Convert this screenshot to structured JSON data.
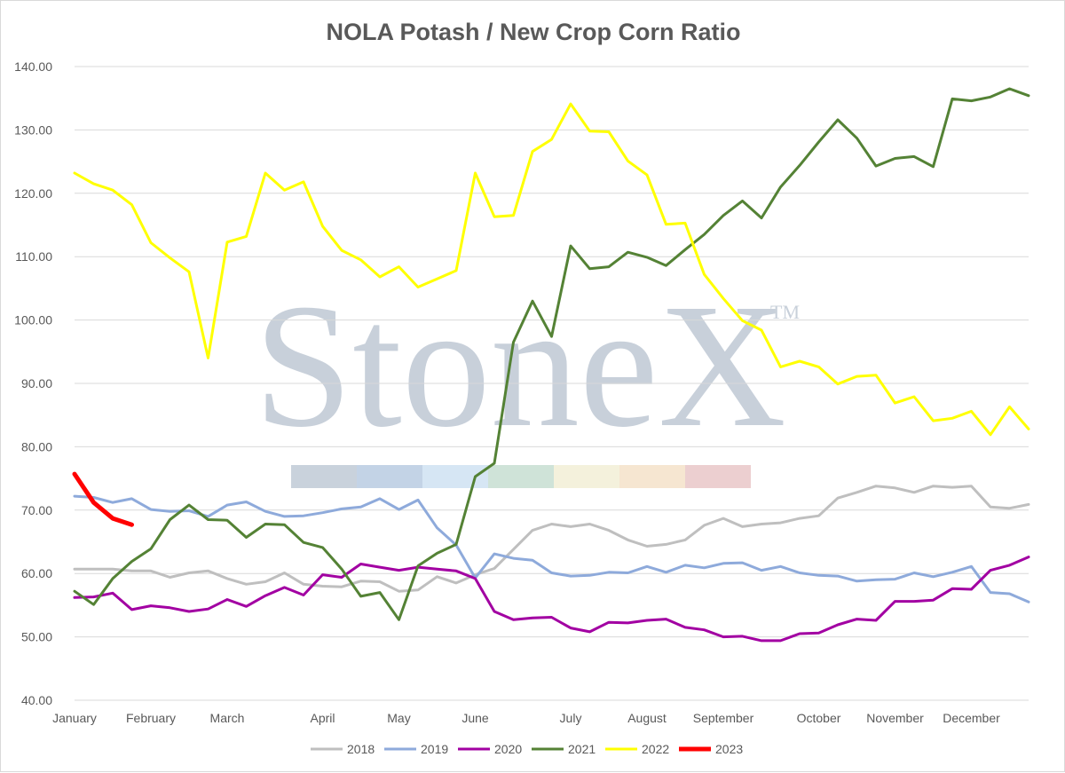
{
  "chart_data": {
    "type": "line",
    "title": "NOLA Potash / New Crop Corn Ratio",
    "xlabel": "",
    "ylabel": "",
    "ylim": [
      40,
      140
    ],
    "y_ticks": [
      "140.00",
      "130.00",
      "120.00",
      "110.00",
      "100.00",
      "90.00",
      "80.00",
      "70.00",
      "60.00",
      "50.00",
      "40.00"
    ],
    "y_tick_values": [
      140,
      130,
      120,
      110,
      100,
      90,
      80,
      70,
      60,
      50,
      40
    ],
    "x_unit": "week of year (0 = first week of January, 51 = last week of December)",
    "xlim": [
      0,
      51
    ],
    "x_ticks": [
      "January",
      "February",
      "March",
      "April",
      "May",
      "June",
      "July",
      "August",
      "September",
      "October",
      "November",
      "December"
    ],
    "x_tick_positions": [
      0,
      4,
      8,
      13,
      17,
      21,
      26,
      30,
      34,
      39,
      43,
      47
    ],
    "grid": true,
    "legend_position": "bottom",
    "watermark": {
      "text": "StoneX",
      "mark": "TM"
    },
    "watermark_colors": [
      "#c9d2dc",
      "#c3d3e6",
      "#d6e6f4",
      "#cfe3d8",
      "#f4f1dc",
      "#f6e6d1",
      "#eccfd0"
    ],
    "series": [
      {
        "name": "2018",
        "color": "#bfbfbf",
        "width": 3,
        "values": [
          60.7,
          60.7,
          60.7,
          60.4,
          60.4,
          59.4,
          60.1,
          60.4,
          59.2,
          58.3,
          58.7,
          60.1,
          58.3,
          58.0,
          57.9,
          58.8,
          58.7,
          57.2,
          57.4,
          59.5,
          58.5,
          59.8,
          60.8,
          63.8,
          66.8,
          67.8,
          67.4,
          67.8,
          66.8,
          65.3,
          64.3,
          64.6,
          65.3,
          67.6,
          68.7,
          67.4,
          67.8,
          68.0,
          68.7,
          69.1,
          71.9,
          72.8,
          73.8,
          73.5,
          72.8,
          73.8,
          73.6,
          73.8,
          70.5,
          70.3,
          70.9
        ]
      },
      {
        "name": "2019",
        "color": "#8eaadb",
        "width": 3,
        "values": [
          72.2,
          72.0,
          71.2,
          71.8,
          70.1,
          69.8,
          69.9,
          69.0,
          70.8,
          71.3,
          69.8,
          69.0,
          69.1,
          69.6,
          70.2,
          70.5,
          71.8,
          70.1,
          71.6,
          67.2,
          64.5,
          59.3,
          63.1,
          62.4,
          62.1,
          60.1,
          59.6,
          59.7,
          60.2,
          60.1,
          61.1,
          60.2,
          61.3,
          60.9,
          61.6,
          61.7,
          60.5,
          61.1,
          60.1,
          59.7,
          59.6,
          58.8,
          59.0,
          59.1,
          60.1,
          59.5,
          60.2,
          61.1,
          57.0,
          56.8,
          55.5
        ]
      },
      {
        "name": "2020",
        "color": "#a200a2",
        "width": 3,
        "values": [
          56.2,
          56.3,
          56.9,
          54.3,
          54.9,
          54.6,
          54.0,
          54.4,
          55.9,
          54.8,
          56.5,
          57.8,
          56.6,
          59.8,
          59.4,
          61.5,
          61.0,
          60.5,
          61.0,
          60.7,
          60.4,
          59.2,
          54.0,
          52.7,
          53.0,
          53.1,
          51.4,
          50.8,
          52.3,
          52.2,
          52.6,
          52.8,
          51.5,
          51.1,
          50.0,
          50.1,
          49.4,
          49.4,
          50.5,
          50.6,
          51.9,
          52.8,
          52.6,
          55.6,
          55.6,
          55.8,
          57.6,
          57.5,
          60.5,
          61.3,
          62.6
        ]
      },
      {
        "name": "2021",
        "color": "#548235",
        "width": 3,
        "values": [
          57.2,
          55.1,
          59.2,
          61.9,
          63.9,
          68.5,
          70.8,
          68.5,
          68.4,
          65.7,
          67.8,
          67.7,
          64.9,
          64.1,
          60.7,
          56.4,
          57.0,
          52.7,
          61.2,
          63.2,
          64.6,
          75.3,
          77.4,
          96.5,
          103.0,
          97.4,
          111.7,
          108.1,
          108.4,
          110.7,
          109.9,
          108.6,
          111.1,
          113.5,
          116.5,
          118.8,
          116.1,
          121.0,
          124.4,
          128.1,
          131.6,
          128.7,
          124.3,
          125.5,
          125.8,
          124.2,
          134.9,
          134.6,
          135.2,
          136.5,
          135.4
        ]
      },
      {
        "name": "2022",
        "color": "#ffff00",
        "width": 3,
        "values": [
          123.2,
          121.5,
          120.5,
          118.2,
          112.2,
          109.8,
          107.6,
          94.0,
          112.3,
          113.2,
          123.2,
          120.5,
          121.8,
          114.8,
          111.0,
          109.5,
          106.8,
          108.4,
          105.2,
          106.5,
          107.8,
          123.2,
          116.3,
          116.5,
          126.6,
          128.5,
          134.1,
          129.8,
          129.7,
          125.1,
          122.9,
          115.1,
          115.3,
          107.2,
          103.4,
          99.9,
          98.4,
          92.6,
          93.5,
          92.6,
          89.9,
          91.1,
          91.3,
          86.9,
          87.9,
          84.1,
          84.5,
          85.6,
          81.9,
          86.3,
          82.8
        ]
      },
      {
        "name": "2023",
        "color": "#ff0000",
        "width": 5,
        "values": [
          75.7,
          71.2,
          68.7,
          67.7
        ]
      }
    ]
  }
}
